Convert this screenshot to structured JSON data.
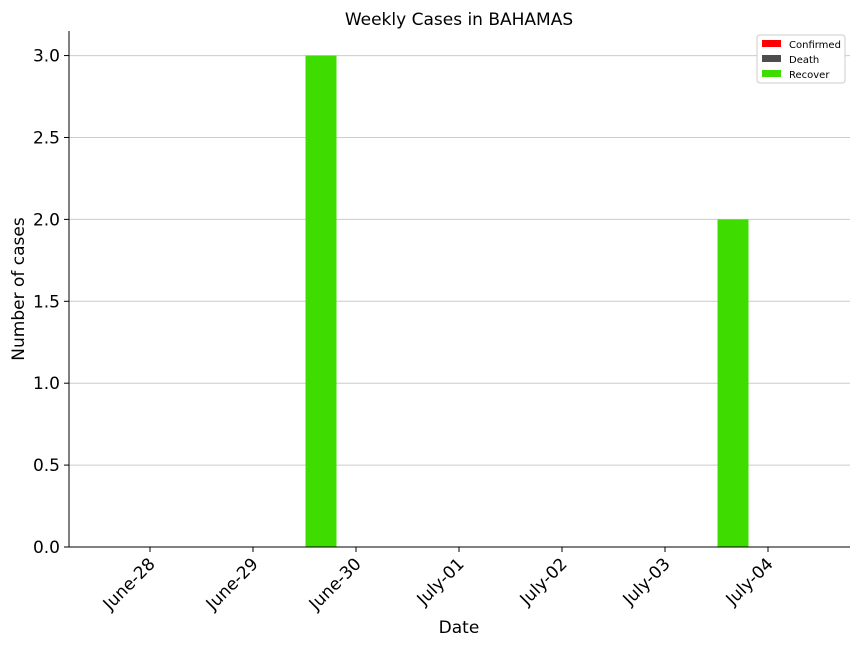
{
  "chart_data": {
    "type": "bar",
    "title": "Weekly Cases in BAHAMAS",
    "xlabel": "Date",
    "ylabel": "Number of cases",
    "categories": [
      "June-28",
      "June-29",
      "June-30",
      "July-01",
      "July-02",
      "July-03",
      "July-04"
    ],
    "series": [
      {
        "name": "Confirmed",
        "color": "#ff0000",
        "values": [
          0,
          0,
          0,
          0,
          0,
          0,
          0
        ]
      },
      {
        "name": "Death",
        "color": "#4d4d4d",
        "values": [
          0,
          0,
          0,
          0,
          0,
          0,
          0
        ]
      },
      {
        "name": "Recover",
        "color": "#3fdc00",
        "values": [
          0,
          3,
          0,
          0,
          0,
          2,
          0
        ]
      }
    ],
    "ylim": [
      0,
      3.15
    ],
    "yticks": [
      "0.0",
      "0.5",
      "1.0",
      "1.5",
      "2.0",
      "2.5",
      "3.0"
    ],
    "grid": "y",
    "legend_position": "top-right"
  }
}
